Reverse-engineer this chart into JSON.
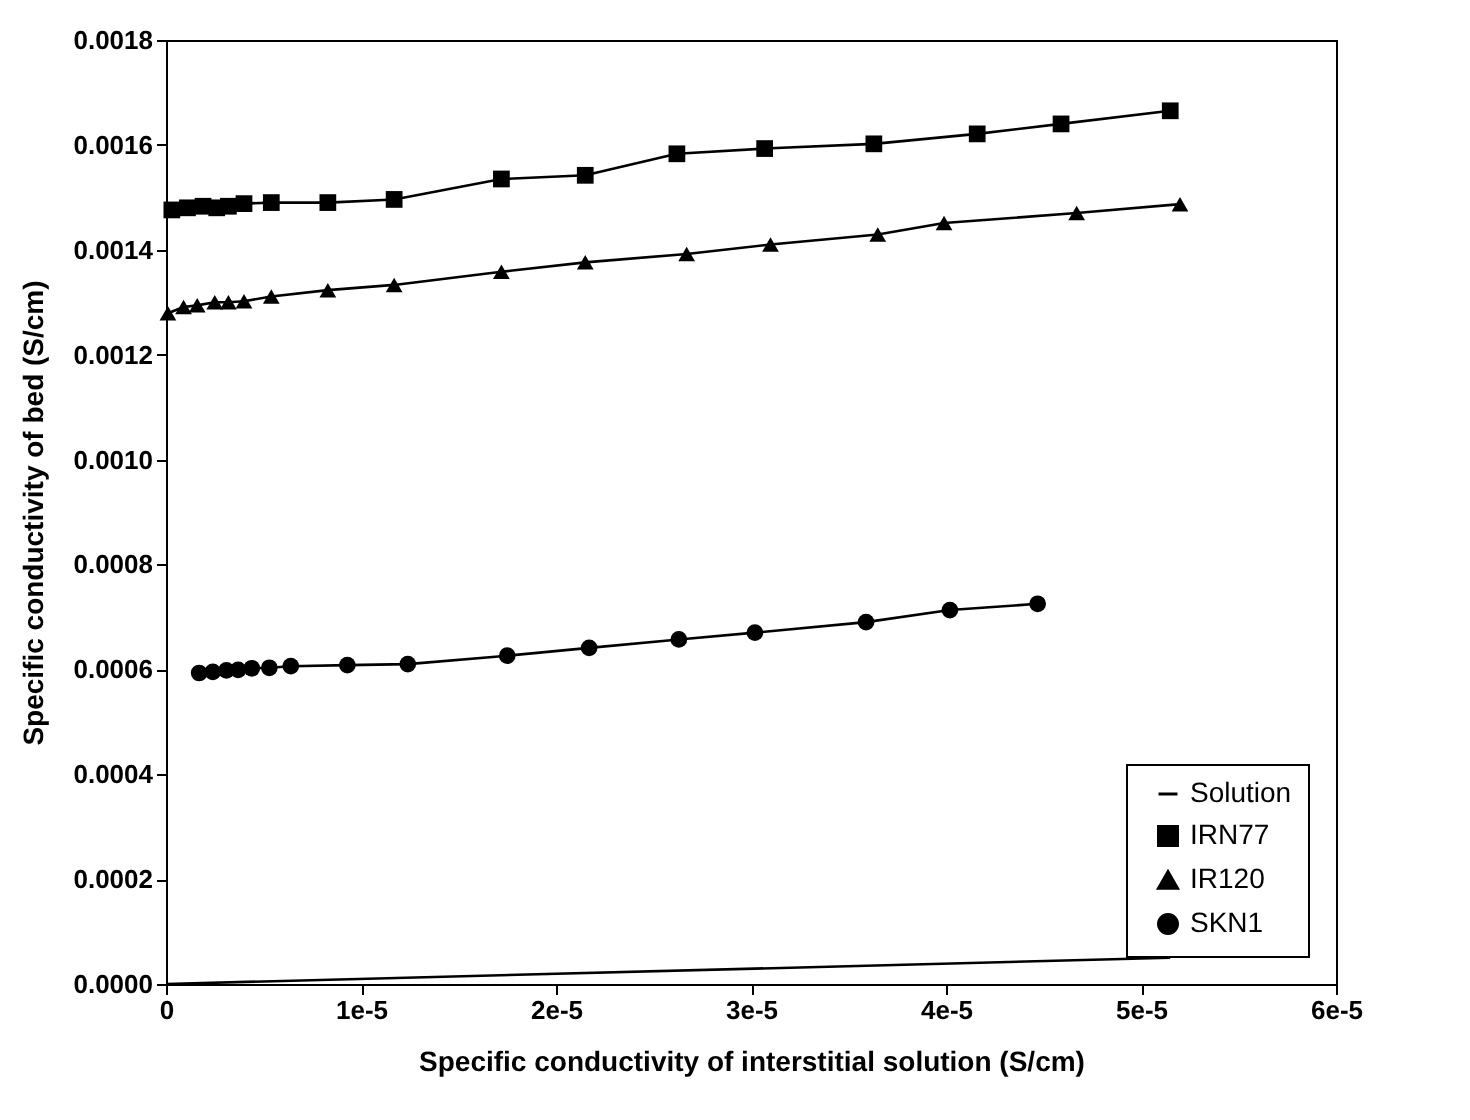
{
  "chart_data": {
    "type": "line",
    "xlabel": "Specific conductivity of interstitial solution (S/cm)",
    "ylabel": "Specific conductivity of bed (S/cm)",
    "xlim": [
      0,
      6e-05
    ],
    "xticks": [
      0,
      {
        "value": 1e-05,
        "label": "1e-5"
      },
      {
        "value": 2e-05,
        "label": "2e-5"
      },
      {
        "value": 3e-05,
        "label": "3e-5"
      },
      {
        "value": 4e-05,
        "label": "4e-5"
      },
      {
        "value": 5e-05,
        "label": "5e-5"
      },
      {
        "value": 6e-05,
        "label": "6e-5"
      }
    ],
    "ylim": [
      0,
      0.0018
    ],
    "yticks": [
      {
        "value": 0,
        "label": "0.0000"
      },
      {
        "value": 0.0002,
        "label": "0.0002"
      },
      {
        "value": 0.0004,
        "label": "0.0004"
      },
      {
        "value": 0.0006,
        "label": "0.0006"
      },
      {
        "value": 0.0008,
        "label": "0.0008"
      },
      {
        "value": 0.001,
        "label": "0.0010"
      },
      {
        "value": 0.0012,
        "label": "0.0012"
      },
      {
        "value": 0.0014,
        "label": "0.0014"
      },
      {
        "value": 0.0016,
        "label": "0.0016"
      },
      {
        "value": 0.0018,
        "label": "0.0018"
      }
    ],
    "grid": false,
    "legend": "bottom right",
    "line_style": "solid",
    "series": [
      {
        "name": "Solution",
        "color": "#000000",
        "marker": "none",
        "x": [
          0,
          5.15e-05
        ],
        "values": [
          0,
          5e-05
        ]
      },
      {
        "name": "IRN77",
        "color": "#000000",
        "marker": "square",
        "x": [
          3e-07,
          1.1e-06,
          1.9e-06,
          2.6e-06,
          3.2e-06,
          4e-06,
          5.4e-06,
          8.3e-06,
          1.17e-05,
          1.72e-05,
          2.15e-05,
          2.62e-05,
          3.07e-05,
          3.63e-05,
          4.16e-05,
          4.59e-05,
          5.15e-05
        ],
        "values": [
          0.001476,
          0.00148,
          0.001483,
          0.00148,
          0.001483,
          0.001488,
          0.00149,
          0.00149,
          0.001496,
          0.001535,
          0.001542,
          0.001583,
          0.001593,
          0.001602,
          0.001621,
          0.00164,
          0.001665
        ]
      },
      {
        "name": "IR120",
        "color": "#000000",
        "marker": "triangle",
        "x": [
          1e-07,
          9e-07,
          1.6e-06,
          2.5e-06,
          3.2e-06,
          4e-06,
          5.4e-06,
          8.3e-06,
          1.17e-05,
          1.72e-05,
          2.15e-05,
          2.67e-05,
          3.1e-05,
          3.65e-05,
          3.99e-05,
          4.67e-05,
          5.2e-05
        ],
        "values": [
          0.001279,
          0.001291,
          0.001294,
          0.0013,
          0.0013,
          0.001302,
          0.001311,
          0.001323,
          0.001333,
          0.001358,
          0.001376,
          0.001392,
          0.00141,
          0.001429,
          0.001451,
          0.00147,
          0.001487
        ]
      },
      {
        "name": "SKN1",
        "color": "#000000",
        "marker": "circle",
        "x": [
          1.7e-06,
          2.4e-06,
          3.1e-06,
          3.7e-06,
          4.4e-06,
          5.3e-06,
          6.4e-06,
          9.3e-06,
          1.24e-05,
          1.75e-05,
          2.17e-05,
          2.63e-05,
          3.02e-05,
          3.59e-05,
          4.02e-05,
          4.47e-05
        ],
        "values": [
          0.000593,
          0.000595,
          0.000598,
          0.000599,
          0.000602,
          0.000603,
          0.000606,
          0.000608,
          0.00061,
          0.000626,
          0.000641,
          0.000657,
          0.00067,
          0.00069,
          0.000713,
          0.000725
        ]
      }
    ]
  }
}
